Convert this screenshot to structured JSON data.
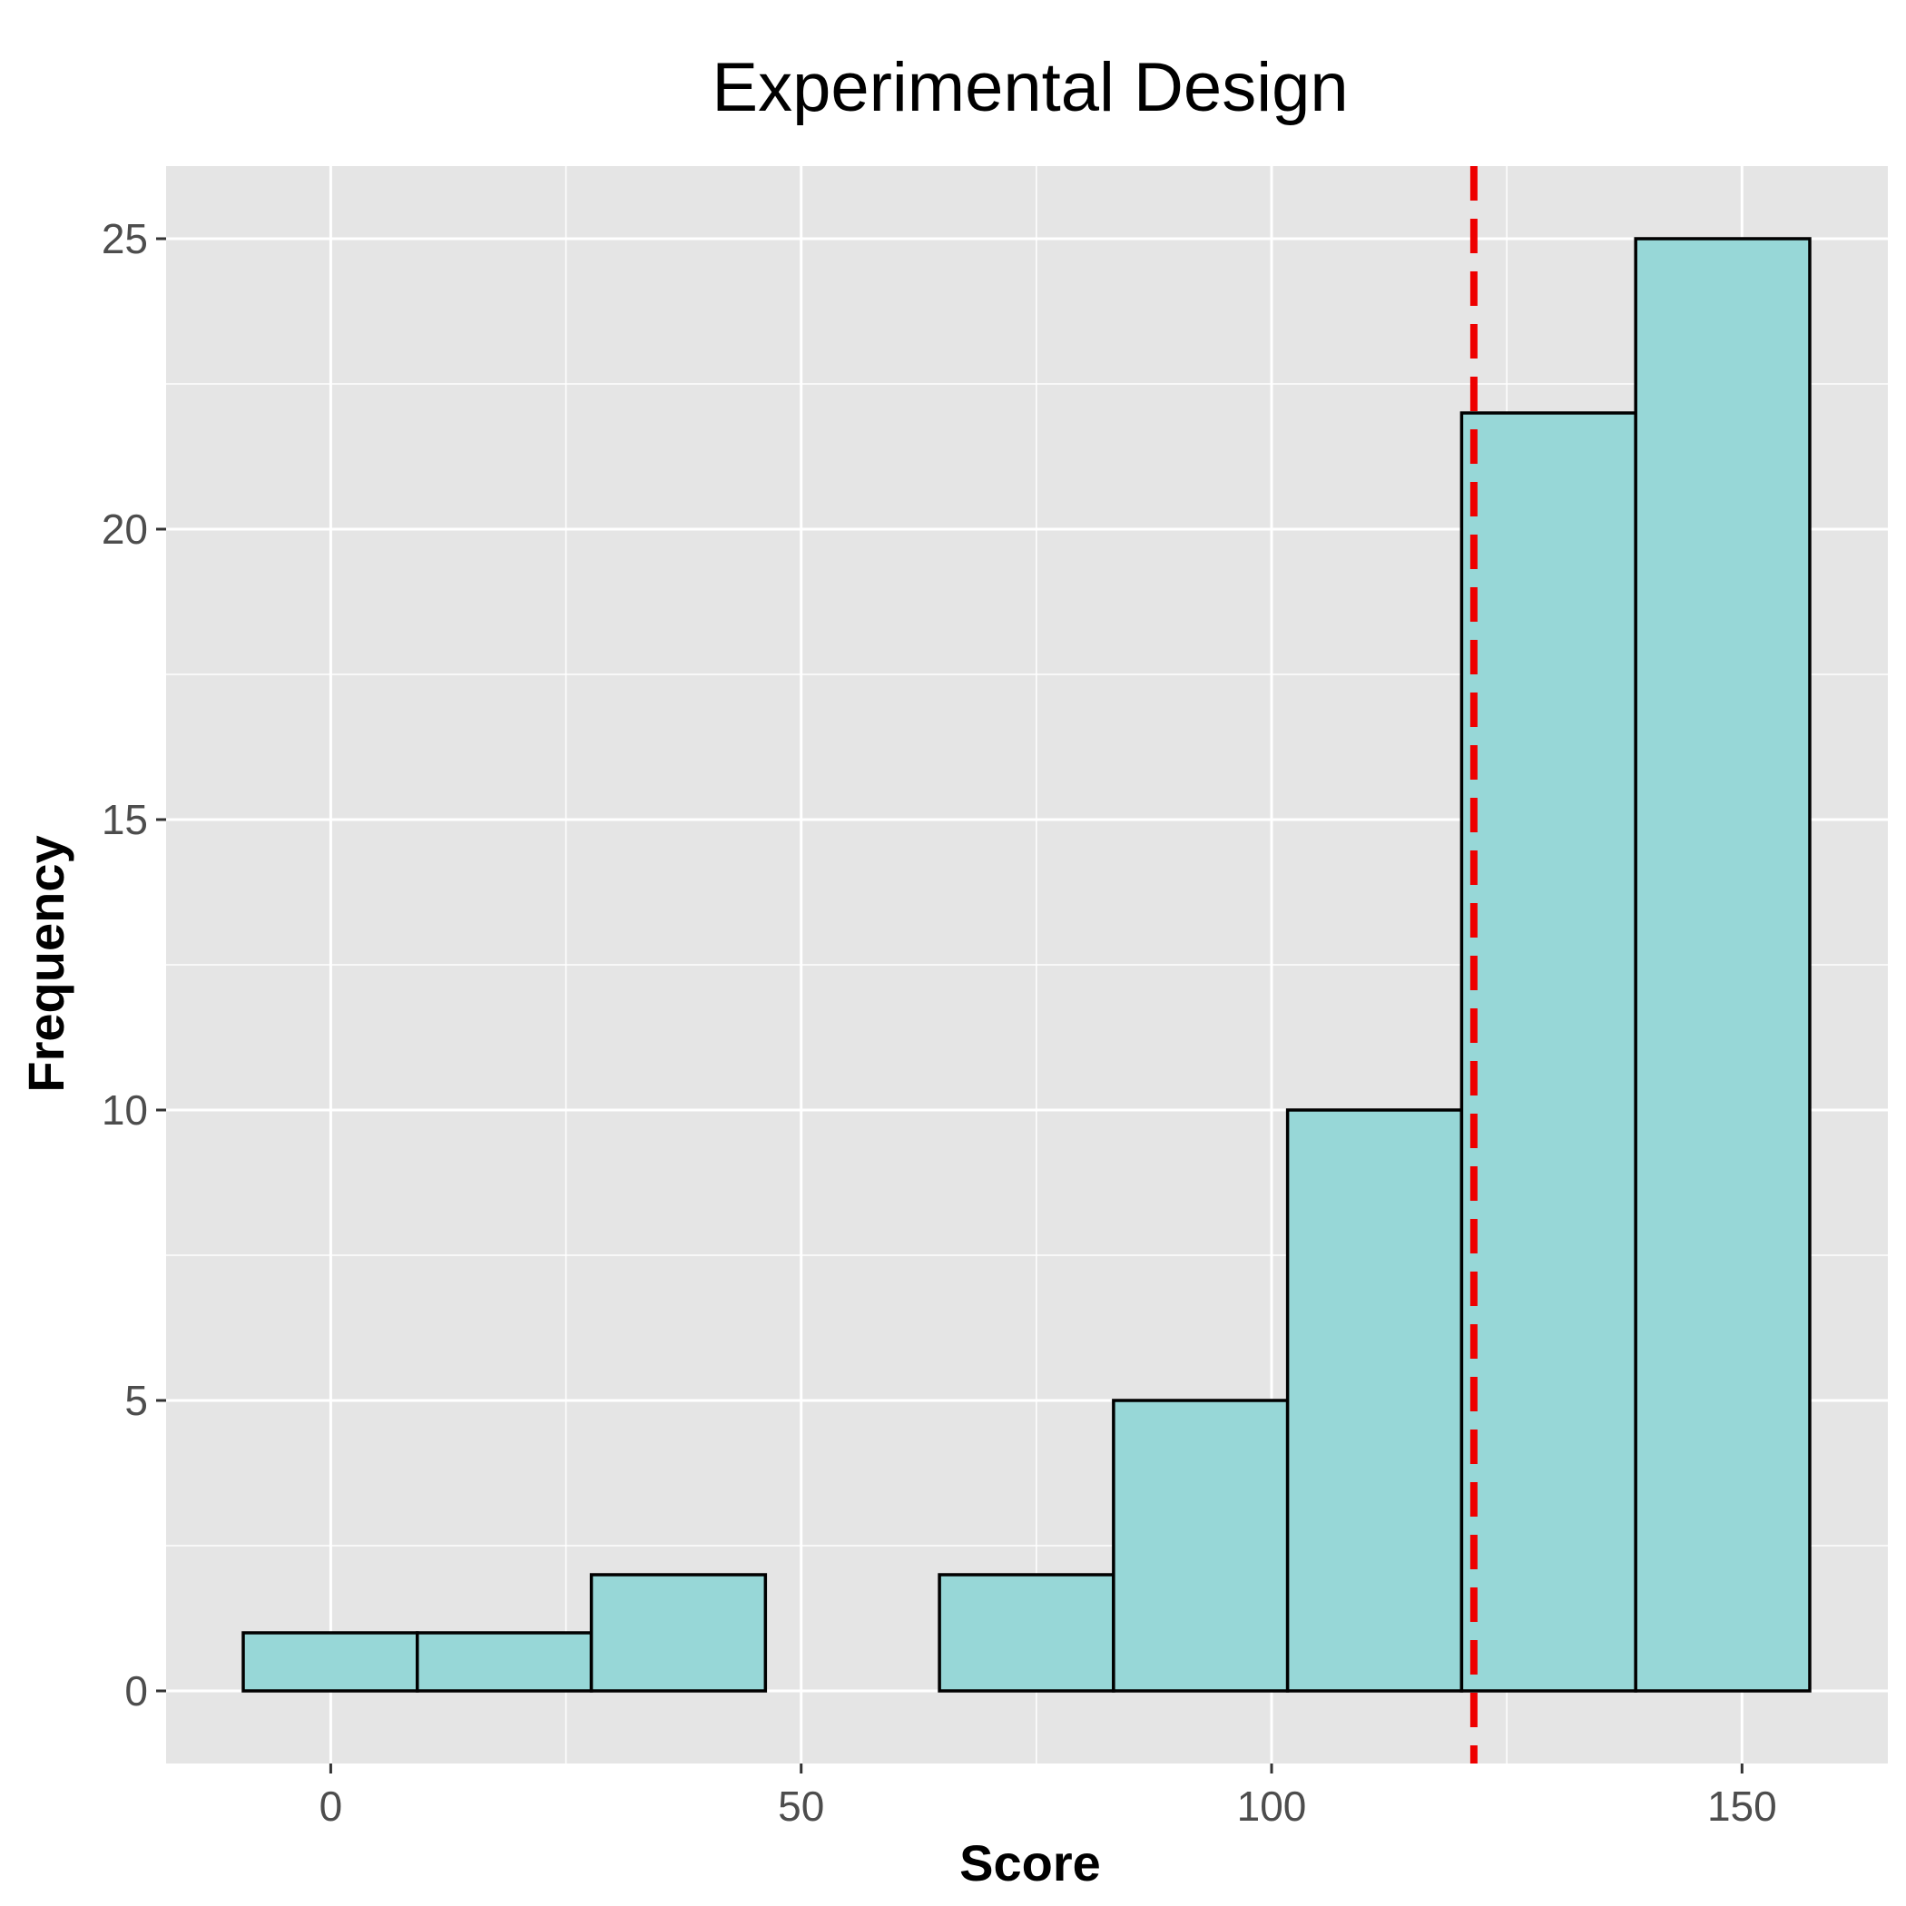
{
  "chart_data": {
    "type": "bar",
    "title": "Experimental Design",
    "xlabel": "Score",
    "ylabel": "Frequency",
    "bins": [
      {
        "x_start": -9.3,
        "x_end": 9.2,
        "count": 1
      },
      {
        "x_start": 9.2,
        "x_end": 27.7,
        "count": 1
      },
      {
        "x_start": 27.7,
        "x_end": 46.2,
        "count": 2
      },
      {
        "x_start": 46.2,
        "x_end": 64.7,
        "count": 0
      },
      {
        "x_start": 64.7,
        "x_end": 83.2,
        "count": 2
      },
      {
        "x_start": 83.2,
        "x_end": 101.7,
        "count": 5
      },
      {
        "x_start": 101.7,
        "x_end": 120.2,
        "count": 10
      },
      {
        "x_start": 120.2,
        "x_end": 138.7,
        "count": 22
      },
      {
        "x_start": 138.7,
        "x_end": 157.2,
        "count": 25
      }
    ],
    "reference_line": {
      "x": 121.5,
      "style": "dashed",
      "color": "#ee0000"
    },
    "xlim": [
      -17.5,
      165.5
    ],
    "ylim": [
      -1.25,
      26.25
    ],
    "x_ticks": [
      0,
      50,
      100,
      150
    ],
    "y_ticks": [
      0,
      5,
      10,
      15,
      20,
      25
    ],
    "bar_fill": "#97d7d7",
    "bar_outline": "#000000",
    "panel_background": "#e5e5e5",
    "grid": true
  }
}
